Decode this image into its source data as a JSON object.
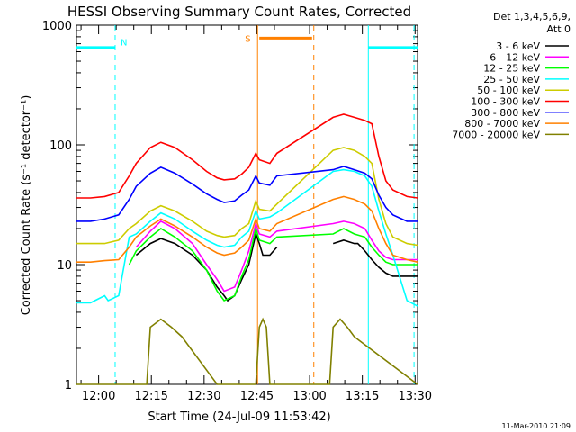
{
  "chart_data": {
    "type": "line",
    "title": "HESSI Observing Summary Count Rates, Corrected",
    "xlabel": "Start Time (24-Jul-09 11:53:42)",
    "ylabel": "Corrected Count Rate (s⁻¹ detector⁻¹)",
    "yscale": "log",
    "ylim": [
      1,
      1000
    ],
    "xlim_minutes_after_11_53_42": [
      0,
      97
    ],
    "y_ticks": [
      "1",
      "10",
      "100",
      "1000"
    ],
    "x_ticks": [
      {
        "label": "12:00",
        "minute": 6.3
      },
      {
        "label": "12:15",
        "minute": 21.3
      },
      {
        "label": "12:30",
        "minute": 36.3
      },
      {
        "label": "12:45",
        "minute": 51.3
      },
      {
        "label": "13:00",
        "minute": 66.3
      },
      {
        "label": "13:15",
        "minute": 81.3
      },
      {
        "label": "13:30",
        "minute": 96.3
      }
    ],
    "legend_header": [
      "Det 1,3,4,5,6,9,",
      "Att 0"
    ],
    "legend_position": "right",
    "timestamp": "11-Mar-2010 21:09",
    "series": [
      {
        "name": "3 - 6 keV",
        "color": "#000000",
        "x": [
          0,
          4,
          10,
          12,
          17,
          21,
          24,
          28,
          33,
          37,
          40,
          42,
          43,
          45,
          47,
          49,
          51,
          52,
          53,
          55,
          57,
          60,
          62,
          66,
          67,
          69,
          71,
          73,
          76,
          79,
          80,
          81,
          82,
          84,
          86,
          88,
          90,
          94,
          97
        ],
        "y": [
          null,
          null,
          null,
          null,
          12,
          15,
          16.5,
          15,
          12,
          9,
          6.5,
          5.5,
          5,
          5.5,
          7.5,
          10,
          18,
          15,
          12,
          12,
          14,
          null,
          null,
          null,
          null,
          null,
          null,
          15,
          16,
          15,
          15,
          14,
          13,
          11,
          9.5,
          8.5,
          8,
          8,
          8
        ]
      },
      {
        "name": "6 - 12 keV",
        "color": "#ff00ff",
        "x": [
          17,
          21,
          24,
          28,
          33,
          37,
          40,
          42,
          45,
          47,
          49,
          51,
          52,
          55,
          57,
          73,
          76,
          79,
          82,
          84,
          86,
          88,
          90,
          94,
          97
        ],
        "y": [
          14,
          19,
          23,
          20,
          15,
          10,
          7.5,
          6,
          6.5,
          9,
          13,
          22,
          18,
          17,
          19,
          22,
          23,
          22,
          20,
          16,
          13,
          11.5,
          11,
          11,
          11
        ]
      },
      {
        "name": "12 - 25 keV",
        "color": "#00ff00",
        "x": [
          13,
          15,
          17,
          21,
          24,
          28,
          33,
          37,
          40,
          42,
          45,
          47,
          49,
          51,
          52,
          55,
          57,
          73,
          76,
          79,
          82,
          84,
          86,
          88,
          90,
          94,
          97
        ],
        "y": [
          null,
          10,
          13,
          17,
          20,
          17,
          13,
          9,
          6,
          5,
          5.5,
          8,
          11,
          20,
          16,
          15,
          17,
          18,
          20,
          18,
          17,
          14,
          12,
          10.5,
          10,
          10,
          10
        ]
      },
      {
        "name": "25 - 50 keV",
        "color": "#00ffff",
        "x": [
          0,
          4,
          8,
          9,
          12,
          15,
          17,
          21,
          24,
          28,
          33,
          37,
          40,
          42,
          45,
          47,
          49,
          51,
          52,
          55,
          57,
          73,
          76,
          79,
          82,
          84,
          86,
          88,
          90,
          94,
          97
        ],
        "y": [
          4.8,
          4.8,
          5.5,
          5,
          5.5,
          17,
          18,
          23,
          27,
          24,
          19,
          16,
          14.5,
          14,
          14.5,
          17,
          19,
          28,
          24,
          25,
          27,
          60,
          62,
          60,
          55,
          45,
          28,
          18,
          12,
          5,
          4.5
        ]
      },
      {
        "name": "50 - 100 keV",
        "color": "#cccc00",
        "x": [
          0,
          4,
          8,
          12,
          15,
          17,
          21,
          24,
          28,
          33,
          37,
          40,
          42,
          45,
          47,
          49,
          51,
          52,
          55,
          57,
          73,
          76,
          79,
          82,
          84,
          86,
          88,
          90,
          94,
          97
        ],
        "y": [
          15,
          15,
          15,
          16,
          20,
          22,
          28,
          31,
          28,
          23,
          19,
          17.5,
          17,
          17.5,
          20,
          22,
          34,
          29,
          28,
          32,
          90,
          95,
          90,
          80,
          70,
          35,
          22,
          17,
          15,
          14.5
        ]
      },
      {
        "name": "100 - 300 keV",
        "color": "#ff0000",
        "x": [
          0,
          4,
          8,
          12,
          15,
          17,
          21,
          24,
          28,
          33,
          37,
          40,
          42,
          45,
          47,
          49,
          51,
          52,
          55,
          57,
          73,
          76,
          79,
          82,
          84,
          86,
          88,
          90,
          94,
          97
        ],
        "y": [
          36,
          36,
          37,
          40,
          55,
          70,
          95,
          105,
          95,
          75,
          60,
          53,
          51,
          52,
          57,
          65,
          85,
          75,
          70,
          85,
          170,
          180,
          170,
          160,
          150,
          80,
          50,
          42,
          37,
          36
        ]
      },
      {
        "name": "300 - 800 keV",
        "color": "#0000ff",
        "x": [
          0,
          4,
          8,
          12,
          15,
          17,
          21,
          24,
          28,
          33,
          37,
          40,
          42,
          45,
          47,
          49,
          51,
          52,
          55,
          57,
          73,
          76,
          79,
          82,
          84,
          86,
          88,
          90,
          94,
          97
        ],
        "y": [
          23,
          23,
          24,
          26,
          35,
          45,
          58,
          65,
          58,
          47,
          39,
          35,
          33,
          34,
          38,
          42,
          55,
          48,
          46,
          55,
          62,
          66,
          62,
          58,
          52,
          38,
          30,
          26,
          23,
          23
        ]
      },
      {
        "name": "800 - 7000 keV",
        "color": "#ff8000",
        "x": [
          0,
          4,
          8,
          12,
          15,
          17,
          21,
          24,
          28,
          33,
          37,
          40,
          42,
          45,
          47,
          49,
          51,
          52,
          55,
          57,
          73,
          76,
          79,
          82,
          84,
          86,
          88,
          90,
          94,
          97
        ],
        "y": [
          10.5,
          10.5,
          10.8,
          11,
          14,
          17,
          21,
          24,
          21,
          17,
          14,
          12.5,
          12,
          12.5,
          14,
          16,
          24,
          20,
          19,
          22,
          35,
          37,
          35,
          32,
          28,
          20,
          15,
          12,
          11,
          10.5
        ]
      },
      {
        "name": "7000 - 20000 keV",
        "color": "#808000",
        "x": [
          0,
          20,
          21,
          24,
          27,
          30,
          40,
          51,
          52,
          53,
          54,
          55,
          72,
          73,
          75,
          77,
          79,
          97
        ],
        "y": [
          1,
          1,
          3,
          3.5,
          3,
          2.5,
          1,
          1,
          3,
          3.5,
          3,
          1,
          1,
          3,
          3.5,
          3,
          2.5,
          1
        ]
      }
    ],
    "annotations": [
      {
        "text": "N",
        "color": "#00ffff"
      },
      {
        "text": "S",
        "color": "#ff8000"
      }
    ]
  }
}
